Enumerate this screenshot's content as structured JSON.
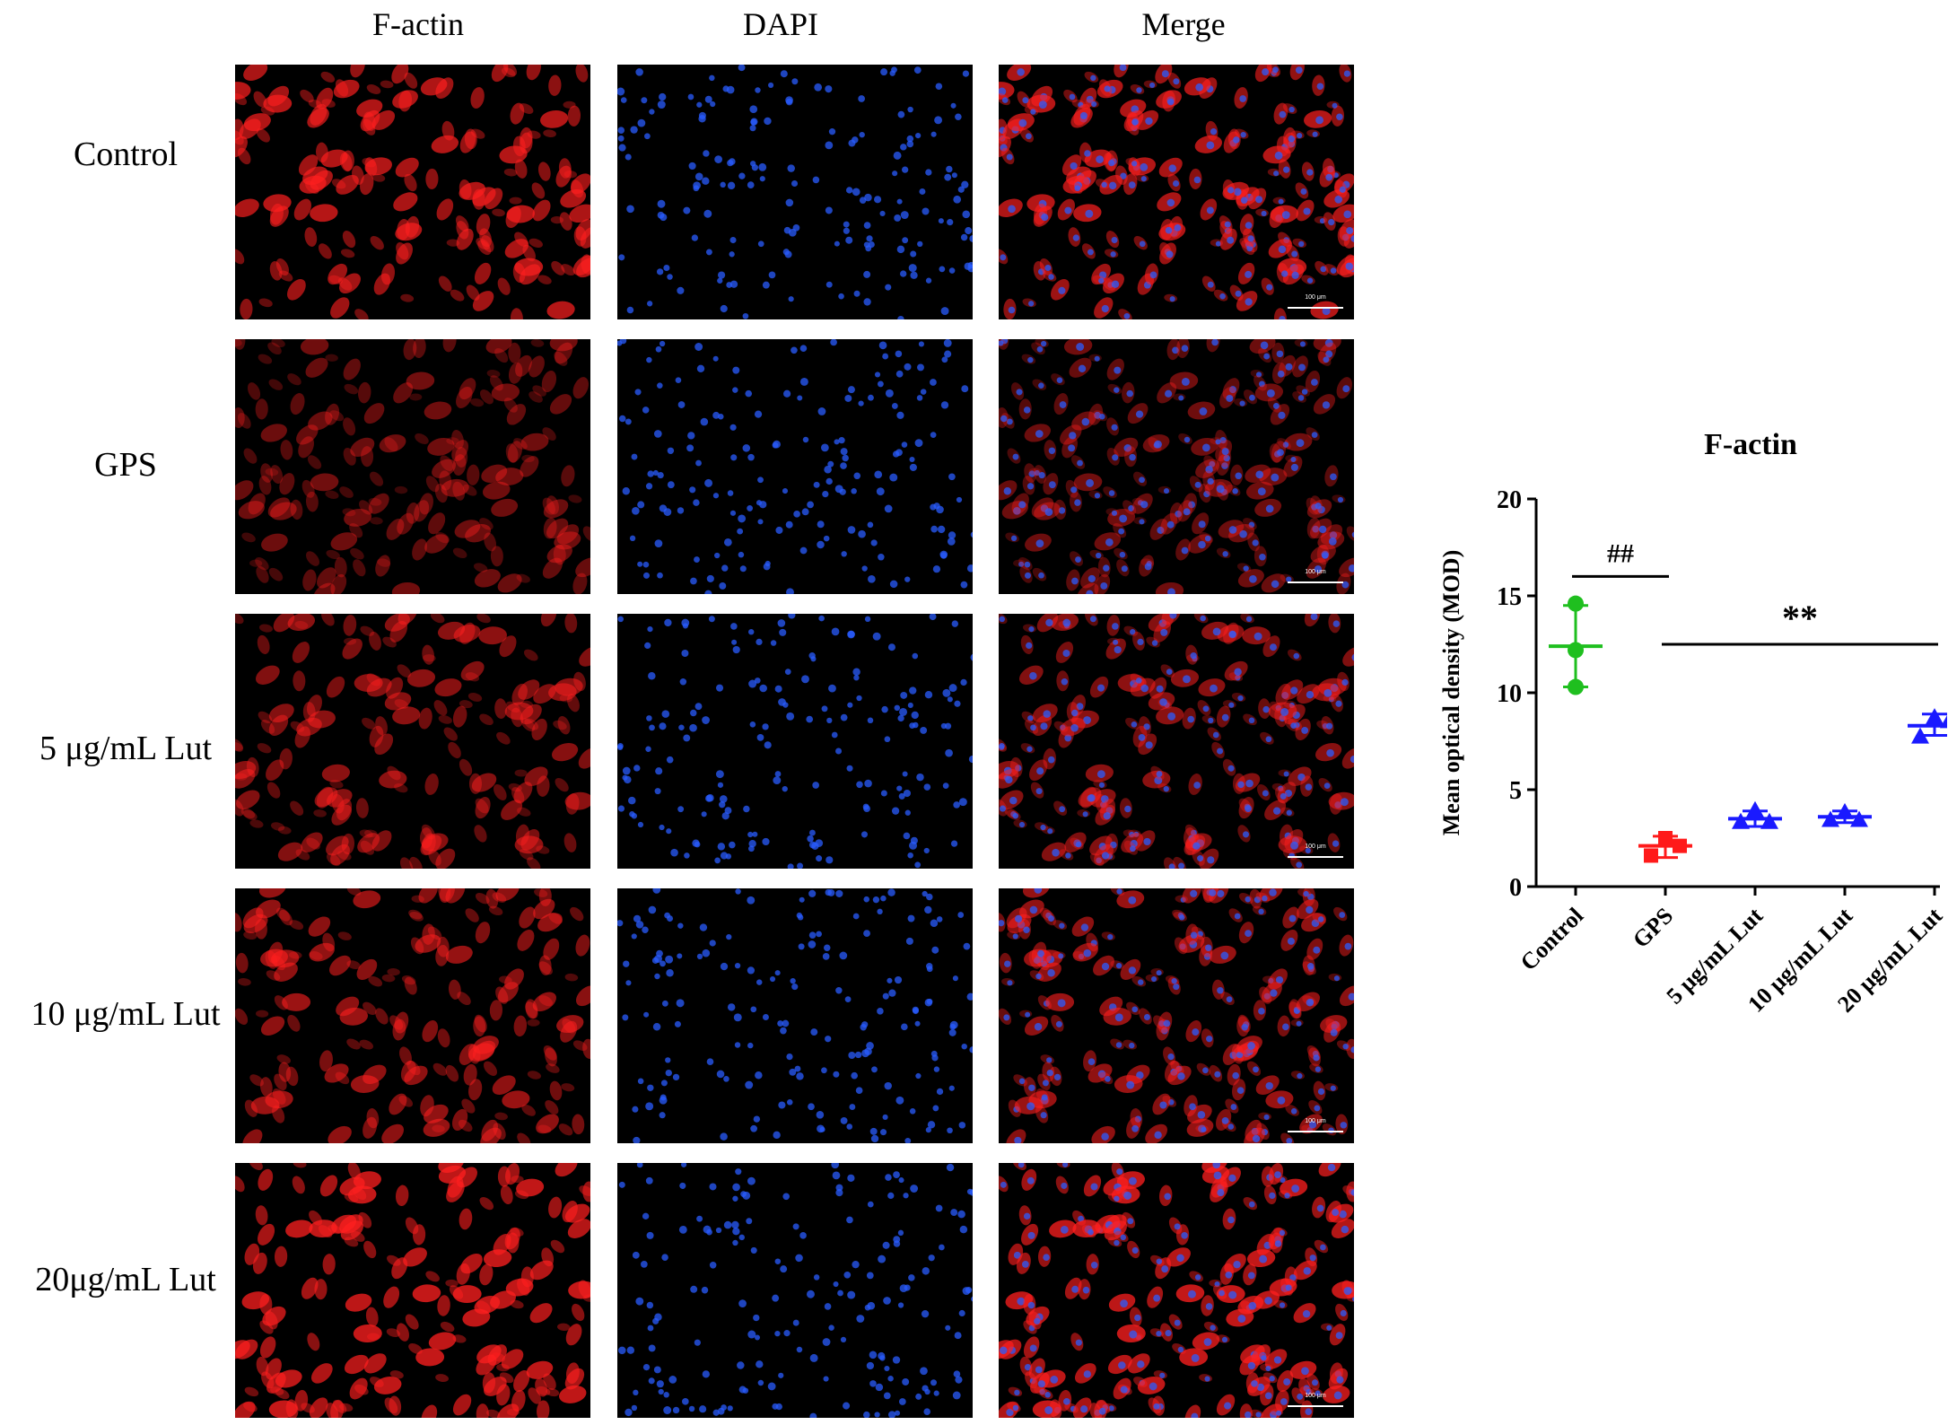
{
  "columns": [
    "F-actin",
    "DAPI",
    "Merge"
  ],
  "rows": [
    "Control",
    "GPS",
    "5 μg/mL Lut",
    "10 μg/mL Lut",
    "20μg/mL Lut"
  ],
  "scale_bar_label": "100 μm",
  "panel_intensity": [
    0.85,
    0.35,
    0.55,
    0.65,
    0.95
  ],
  "colors": {
    "red": "#ff1f1f",
    "blue": "#2a5cff",
    "green": "#1fbf1f",
    "chart_red": "#ff1a1a",
    "chart_blue": "#1a1aff"
  },
  "chart_data": {
    "type": "scatter",
    "title": "F-actin",
    "ylabel": "Mean optical density (MOD)",
    "xlabel": "",
    "ylim": [
      0,
      20
    ],
    "yticks": [
      0,
      5,
      10,
      15,
      20
    ],
    "categories": [
      "Control",
      "GPS",
      "5 μg/mL Lut",
      "10 μg/mL Lut",
      "20 μg/mL Lut"
    ],
    "groups": [
      {
        "category": "Control",
        "marker": "circle",
        "color": "#1fbf1f",
        "points": [
          14.6,
          12.2,
          10.3
        ],
        "mean": 12.4,
        "sd_range": [
          10.3,
          14.5
        ]
      },
      {
        "category": "GPS",
        "marker": "square",
        "color": "#ff1a1a",
        "points": [
          2.5,
          2.1,
          1.6
        ],
        "mean": 2.1,
        "sd_range": [
          1.5,
          2.6
        ]
      },
      {
        "category": "5 μg/mL Lut",
        "marker": "triangle",
        "color": "#1a1aff",
        "points": [
          3.9,
          3.3,
          3.3
        ],
        "mean": 3.5,
        "sd_range": [
          3.1,
          3.9
        ]
      },
      {
        "category": "10 μg/mL Lut",
        "marker": "triangle",
        "color": "#1a1aff",
        "points": [
          3.8,
          3.4,
          3.4
        ],
        "mean": 3.6,
        "sd_range": [
          3.3,
          3.9
        ]
      },
      {
        "category": "20 μg/mL Lut",
        "marker": "triangle",
        "color": "#1a1aff",
        "points": [
          8.7,
          8.5,
          7.7
        ],
        "mean": 8.3,
        "sd_range": [
          7.8,
          8.9
        ]
      }
    ],
    "annotations": [
      {
        "text": "##",
        "from": "Control",
        "to": "GPS",
        "y": 16
      },
      {
        "text": "**",
        "from": "GPS",
        "to": "20 μg/mL Lut",
        "y": 12.5
      }
    ]
  }
}
